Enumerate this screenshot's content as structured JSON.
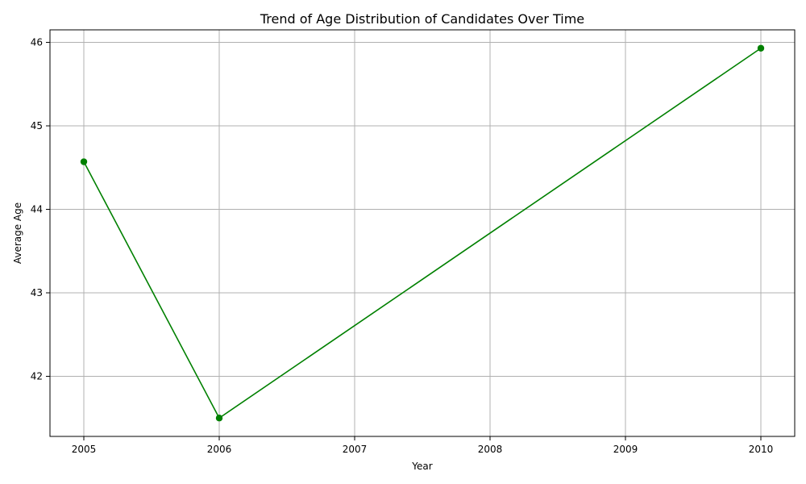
{
  "chart_data": {
    "type": "line",
    "title": "Trend of Age Distribution of Candidates Over Time",
    "xlabel": "Year",
    "ylabel": "Average Age",
    "x": [
      2005,
      2006,
      2010
    ],
    "series": [
      {
        "values": [
          44.57,
          41.5,
          45.93
        ],
        "color": "#008000",
        "marker": "circle"
      }
    ],
    "xlim": [
      2004.75,
      2010.25
    ],
    "ylim": [
      41.28,
      46.15
    ],
    "xticks": [
      2005,
      2006,
      2007,
      2008,
      2009,
      2010
    ],
    "yticks": [
      42,
      43,
      44,
      45,
      46
    ],
    "grid": true
  }
}
